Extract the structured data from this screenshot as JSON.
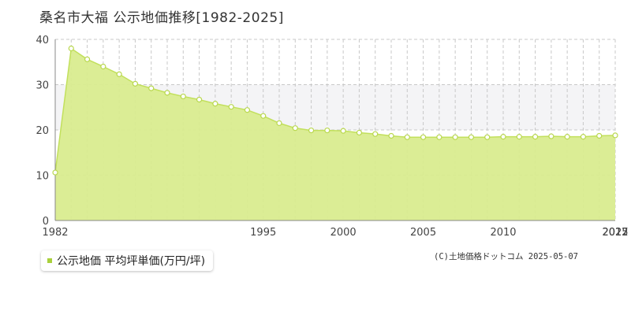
{
  "title": "桑名市大福 公示地価推移[1982-2025]",
  "legend": {
    "label": "公示地価 平均坪単価(万円/坪)"
  },
  "credit": "(C)土地価格ドットコム 2025-05-07",
  "colors": {
    "line": "#c2e05c",
    "fill": "#d9ec8f",
    "marker_stroke": "#b9d84e",
    "legend_swatch": "#a9d03c",
    "grid": "#c8c8c8",
    "band": "#f4f4f6",
    "axis": "#888888"
  },
  "chart_data": {
    "type": "area",
    "x": [
      1982,
      1983,
      1984,
      1985,
      1986,
      1987,
      1988,
      1989,
      1990,
      1991,
      1992,
      1993,
      1994,
      1995,
      1996,
      1997,
      1998,
      1999,
      2000,
      2001,
      2002,
      2003,
      2004,
      2005,
      2006,
      2007,
      2008,
      2009,
      2010,
      2011,
      2012,
      2013,
      2014,
      2015,
      2016,
      2017
    ],
    "series": [
      {
        "name": "公示地価 平均坪単価(万円/坪)",
        "values": [
          10.6,
          38.0,
          35.6,
          34.0,
          32.3,
          30.2,
          29.2,
          28.2,
          27.4,
          26.7,
          25.8,
          25.1,
          24.4,
          23.1,
          21.5,
          20.4,
          19.9,
          19.9,
          19.8,
          19.4,
          19.1,
          18.7,
          18.4,
          18.4,
          18.4,
          18.4,
          18.4,
          18.4,
          18.5,
          18.5,
          18.5,
          18.6,
          18.5,
          18.5,
          18.7,
          18.8
        ]
      }
    ],
    "tick_values": [
      1982,
      1995,
      2000,
      2005,
      2010,
      2017,
      2022,
      2025
    ],
    "x_tick_labels": [
      "1982",
      "1995",
      "2000",
      "2005",
      "2010",
      "2017",
      "2022",
      "2025"
    ],
    "x_index_range": [
      1982,
      2017
    ],
    "y_ticks": [
      0,
      10,
      20,
      30,
      40
    ],
    "ylim": [
      0,
      40
    ],
    "grid": true,
    "legend_position": "bottom-left"
  }
}
